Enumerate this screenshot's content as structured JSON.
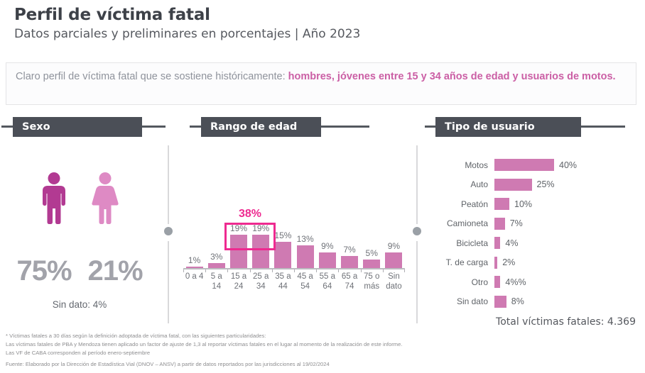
{
  "header": {
    "title": "Perfil de víctima fatal",
    "subtitle": "Datos parciales y preliminares en porcentajes | Año 2023"
  },
  "intro": {
    "normal": "Claro perfil de víctima fatal que se sostiene históricamente: ",
    "highlight": "hombres, jóvenes entre 15 y 34 años de edad y usuarios de motos."
  },
  "sections": {
    "sexo": {
      "label": "Sexo"
    },
    "edad": {
      "label": "Rango de edad"
    },
    "usuario": {
      "label": "Tipo de usuario"
    }
  },
  "chart_data": [
    {
      "id": "sexo",
      "type": "pictogram",
      "title": "Sexo",
      "categories": [
        "Hombres",
        "Mujeres"
      ],
      "values": [
        75,
        21
      ],
      "value_labels": [
        "75%",
        "21%"
      ],
      "sin_dato_label": "Sin dato: 4%",
      "sin_dato_value": 4,
      "icon_colors": {
        "male": "#b23a92",
        "female": "#de8ac4"
      }
    },
    {
      "id": "edad",
      "type": "bar",
      "title": "Rango de edad",
      "categories": [
        "0 a 4",
        "5 a 14",
        "15 a 24",
        "25 a 34",
        "35 a 44",
        "45 a 54",
        "55 a 64",
        "65 a 74",
        "75 o más",
        "Sin dato"
      ],
      "category_lines": [
        [
          "0 a 4"
        ],
        [
          "5 a 14"
        ],
        [
          "15 a",
          "24"
        ],
        [
          "25 a",
          "34"
        ],
        [
          "35 a",
          "44"
        ],
        [
          "45 a",
          "54"
        ],
        [
          "55 a",
          "64"
        ],
        [
          "65 a",
          "74"
        ],
        [
          "75 o",
          "más"
        ],
        [
          "Sin",
          "dato"
        ]
      ],
      "values": [
        1,
        3,
        19,
        19,
        15,
        13,
        9,
        7,
        5,
        9
      ],
      "value_labels": [
        "1%",
        "3%",
        "19%",
        "19%",
        "15%",
        "13%",
        "9%",
        "7%",
        "5%",
        "9%"
      ],
      "annotation": {
        "label": "38%",
        "highlight_categories": [
          "15 a 24",
          "25 a 34"
        ],
        "highlight_color": "#ee2a90"
      },
      "xlabel": "",
      "ylabel": "",
      "ylim": [
        0,
        20
      ],
      "grid": false,
      "bar_color": "#cf7ab2"
    },
    {
      "id": "usuario",
      "type": "bar",
      "orientation": "horizontal",
      "title": "Tipo de usuario",
      "categories": [
        "Motos",
        "Auto",
        "Peatón",
        "Camioneta",
        "Bicicleta",
        "T. de carga",
        "Otro",
        "Sin dato"
      ],
      "values": [
        40,
        25,
        10,
        7,
        4,
        2,
        4,
        8
      ],
      "value_labels": [
        "40%",
        "25%",
        "10%",
        "7%",
        "4%",
        "2%",
        "4%%",
        "8%"
      ],
      "xlabel": "",
      "ylabel": "",
      "xlim": [
        0,
        47
      ],
      "grid": false,
      "bar_color": "#cf7ab2"
    }
  ],
  "totals": {
    "label": "Total víctimas fatales: 4.369"
  },
  "footnotes": {
    "line1": "* Víctimas fatales a 30 días según la definición adoptada de víctima fatal, con las siguientes particularidades:",
    "line2": "Las víctimas fatales de PBA y Mendoza tienen aplicado un factor de ajuste de 1,3 al reportar víctimas fatales en el lugar al momento de la realización de este informe.",
    "line3": "Las VF de CABA corresponden al período enero-septiembre",
    "source": "Fuente: Elaborado por la Dirección de Estadística Vial (DNOV – ANSV) a partir de datos reportados por las jurisdicciones al 19/02/2024"
  },
  "colors": {
    "accent_pink": "#ee2a90",
    "bar_pink": "#cf7ab2",
    "male_icon": "#b23a92",
    "female_icon": "#de8ac4",
    "header_chip_bg": "#4b4f57"
  }
}
